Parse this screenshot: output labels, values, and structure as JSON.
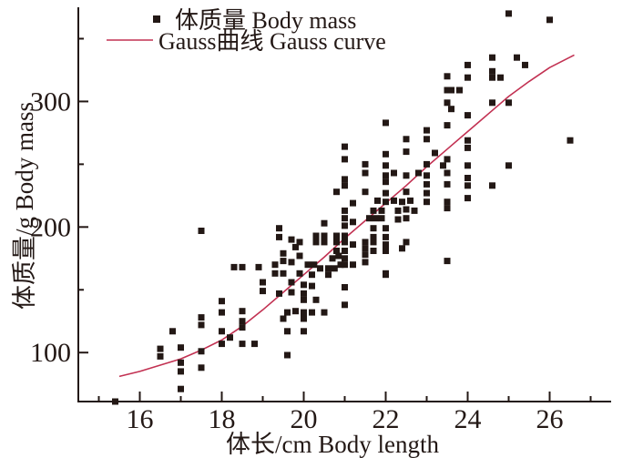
{
  "chart_data": {
    "type": "scatter",
    "title": "",
    "xlabel": "体长/cm Body length",
    "ylabel": "体质量/g Body mass",
    "xlim": [
      14.5,
      27.5
    ],
    "ylim": [
      61,
      375
    ],
    "grid": false,
    "x_major_ticks": [
      16,
      18,
      20,
      22,
      24,
      26
    ],
    "x_minor_ticks": [
      15,
      17,
      19,
      21,
      23,
      25,
      27
    ],
    "y_major_ticks": [
      100,
      200,
      300
    ],
    "y_minor_ticks": [
      150,
      250,
      350
    ],
    "legend_position": "top-left-inside",
    "legend": [
      {
        "label": "体质量 Body mass",
        "swatch": "square"
      },
      {
        "label": "Gauss曲线 Gauss curve",
        "swatch": "line"
      }
    ],
    "colors": {
      "point": "#231815",
      "curve": "#c23152",
      "axis": "#231815",
      "background": "#ffffff"
    },
    "series": [
      {
        "name": "体质量 Body mass",
        "type": "scatter",
        "marker": "square",
        "points": [
          [
            15.4,
            61
          ],
          [
            16.5,
            103
          ],
          [
            16.5,
            97
          ],
          [
            16.8,
            117
          ],
          [
            17,
            104
          ],
          [
            17,
            92
          ],
          [
            17,
            85
          ],
          [
            17,
            71
          ],
          [
            17.5,
            128
          ],
          [
            17.5,
            122
          ],
          [
            17.5,
            101
          ],
          [
            17.5,
            88
          ],
          [
            17.5,
            197
          ],
          [
            18,
            141
          ],
          [
            18,
            132
          ],
          [
            18,
            117
          ],
          [
            18.2,
            112
          ],
          [
            18,
            107
          ],
          [
            18.5,
            133
          ],
          [
            18.5,
            125
          ],
          [
            18.5,
            120
          ],
          [
            18.5,
            107
          ],
          [
            18.8,
            107
          ],
          [
            18.3,
            168
          ],
          [
            18.5,
            168
          ],
          [
            18.9,
            168
          ],
          [
            19,
            156
          ],
          [
            19,
            149
          ],
          [
            19.5,
            163
          ],
          [
            20.2,
            162
          ],
          [
            20.6,
            162
          ],
          [
            22,
            162
          ],
          [
            19.7,
            156
          ],
          [
            20,
            154
          ],
          [
            20.2,
            153
          ],
          [
            21,
            152
          ],
          [
            19.4,
            147
          ],
          [
            19.7,
            148
          ],
          [
            20,
            147
          ],
          [
            20,
            142
          ],
          [
            20.3,
            142
          ],
          [
            21,
            138
          ],
          [
            19.6,
            132
          ],
          [
            19.8,
            133
          ],
          [
            20,
            132
          ],
          [
            20.2,
            132
          ],
          [
            20.5,
            132
          ],
          [
            19.5,
            127
          ],
          [
            20,
            127
          ],
          [
            19.6,
            117
          ],
          [
            20,
            117
          ],
          [
            19.6,
            98
          ],
          [
            19.4,
            199
          ],
          [
            19.4,
            192
          ],
          [
            19.7,
            190
          ],
          [
            19.9,
            188
          ],
          [
            19.8,
            184
          ],
          [
            20.3,
            193
          ],
          [
            20.5,
            193
          ],
          [
            20.3,
            188
          ],
          [
            20.5,
            188
          ],
          [
            20.8,
            193
          ],
          [
            20.8,
            188
          ],
          [
            20.5,
            203
          ],
          [
            20.8,
            181
          ],
          [
            19.5,
            179
          ],
          [
            19.5,
            173
          ],
          [
            19.7,
            172
          ],
          [
            19.9,
            177
          ],
          [
            20.1,
            170
          ],
          [
            20.25,
            170
          ],
          [
            19.9,
            163
          ],
          [
            19.3,
            170
          ],
          [
            19.3,
            163
          ],
          [
            20.4,
            167
          ],
          [
            20.6,
            167
          ],
          [
            20.75,
            167
          ],
          [
            20.9,
            170
          ],
          [
            20.7,
            175
          ],
          [
            20.85,
            177
          ],
          [
            21,
            213
          ],
          [
            21,
            207
          ],
          [
            21,
            201
          ],
          [
            21,
            193
          ],
          [
            21,
            188
          ],
          [
            21,
            181
          ],
          [
            21,
            175
          ],
          [
            21,
            170
          ],
          [
            21.2,
            204
          ],
          [
            21.2,
            186
          ],
          [
            21.2,
            170
          ],
          [
            21,
            264
          ],
          [
            21,
            254
          ],
          [
            21,
            238
          ],
          [
            21,
            233
          ],
          [
            20.8,
            228
          ],
          [
            21.2,
            219
          ],
          [
            21.7,
            213
          ],
          [
            21.9,
            213
          ],
          [
            22.3,
            213
          ],
          [
            22.5,
            214
          ],
          [
            22.7,
            213
          ],
          [
            21.6,
            207
          ],
          [
            21.75,
            207
          ],
          [
            21.9,
            207
          ],
          [
            22.3,
            206
          ],
          [
            22.5,
            207
          ],
          [
            21.7,
            199
          ],
          [
            22,
            199
          ],
          [
            21.7,
            192
          ],
          [
            22,
            192
          ],
          [
            21.5,
            188
          ],
          [
            21.7,
            188
          ],
          [
            22,
            186
          ],
          [
            22.5,
            188
          ],
          [
            21.5,
            183
          ],
          [
            21.7,
            181
          ],
          [
            22,
            181
          ],
          [
            22.4,
            183
          ],
          [
            21.5,
            178
          ],
          [
            21.5,
            172
          ],
          [
            22,
            163
          ],
          [
            23.5,
            173
          ],
          [
            22.5,
            270
          ],
          [
            23,
            270
          ],
          [
            22,
            258
          ],
          [
            22.5,
            260
          ],
          [
            23.2,
            259
          ],
          [
            21.5,
            250
          ],
          [
            22,
            249
          ],
          [
            23,
            250
          ],
          [
            23.4,
            249
          ],
          [
            21.5,
            243
          ],
          [
            22,
            241
          ],
          [
            22.2,
            243
          ],
          [
            22.5,
            241
          ],
          [
            22.8,
            243
          ],
          [
            23,
            241
          ],
          [
            22,
            236
          ],
          [
            23,
            234
          ],
          [
            21.5,
            228
          ],
          [
            22,
            227
          ],
          [
            22.5,
            228
          ],
          [
            23,
            227
          ],
          [
            21.8,
            221
          ],
          [
            22,
            220
          ],
          [
            22.2,
            221
          ],
          [
            22.4,
            220
          ],
          [
            22.6,
            221
          ],
          [
            23,
            220
          ],
          [
            22,
            283
          ],
          [
            23,
            277
          ],
          [
            23.5,
            281
          ],
          [
            23.5,
            320
          ],
          [
            23.5,
            309
          ],
          [
            23.5,
            299
          ],
          [
            25,
            370
          ],
          [
            26,
            365
          ],
          [
            24.6,
            335
          ],
          [
            25.2,
            335
          ],
          [
            24,
            329
          ],
          [
            25.4,
            329
          ],
          [
            24.6,
            324
          ],
          [
            24,
            319
          ],
          [
            24.6,
            319
          ],
          [
            24.8,
            319
          ],
          [
            23.6,
            309
          ],
          [
            23.8,
            309
          ],
          [
            24.6,
            299
          ],
          [
            25,
            299
          ],
          [
            23.6,
            294
          ],
          [
            24,
            289
          ],
          [
            24,
            269
          ],
          [
            24,
            263
          ],
          [
            26.5,
            269
          ],
          [
            23.5,
            254
          ],
          [
            24,
            249
          ],
          [
            25,
            249
          ],
          [
            23.5,
            243
          ],
          [
            24,
            239
          ],
          [
            23.5,
            234
          ],
          [
            24,
            233
          ],
          [
            24.6,
            233
          ],
          [
            24,
            223
          ],
          [
            23.5,
            220
          ],
          [
            23.5,
            215
          ]
        ]
      },
      {
        "name": "Gauss曲线 Gauss curve",
        "type": "line",
        "points": [
          [
            15.5,
            81
          ],
          [
            16,
            85
          ],
          [
            16.5,
            90
          ],
          [
            17,
            95
          ],
          [
            17.5,
            102
          ],
          [
            18,
            110
          ],
          [
            18.5,
            121
          ],
          [
            19,
            134
          ],
          [
            19.5,
            148
          ],
          [
            20,
            162
          ],
          [
            20.5,
            176
          ],
          [
            21,
            191
          ],
          [
            21.5,
            205
          ],
          [
            22,
            219
          ],
          [
            22.5,
            233
          ],
          [
            23,
            248
          ],
          [
            23.5,
            262
          ],
          [
            24,
            276
          ],
          [
            24.5,
            290
          ],
          [
            25,
            304
          ],
          [
            25.5,
            316
          ],
          [
            26,
            327
          ],
          [
            26.6,
            337
          ]
        ]
      }
    ]
  }
}
